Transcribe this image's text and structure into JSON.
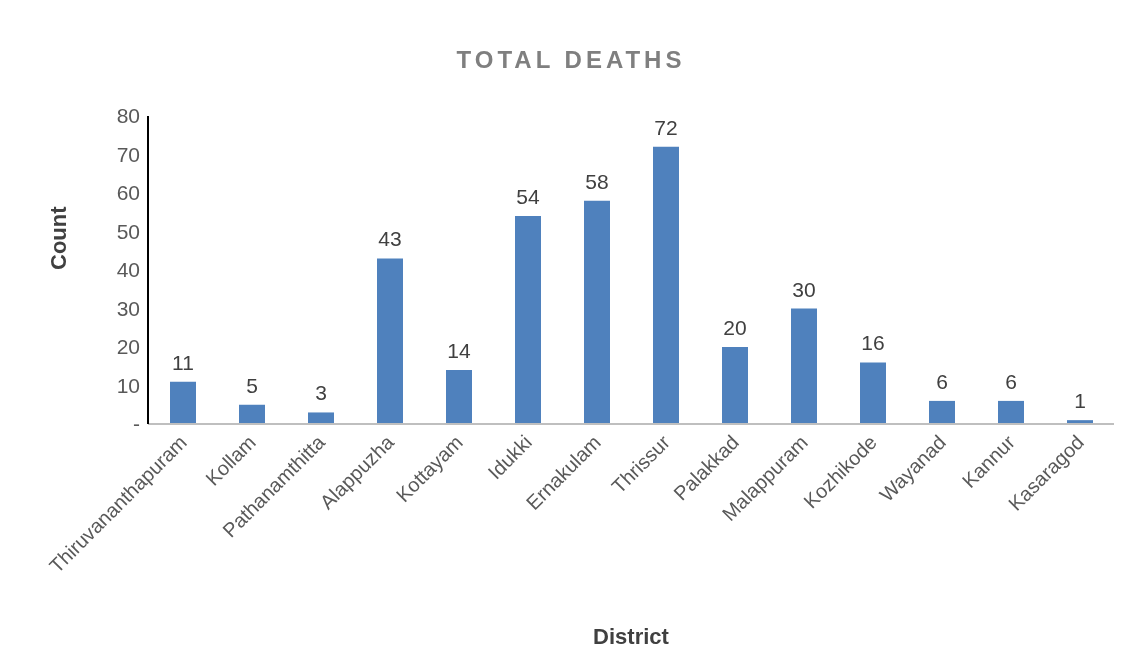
{
  "chart_data": {
    "type": "bar",
    "title": "TOTAL DEATHS",
    "xlabel": "District",
    "ylabel": "Count",
    "categories": [
      "Thiruvananthapuram",
      "Kollam",
      "Pathanamthitta",
      "Alappuzha",
      "Kottayam",
      "Idukki",
      "Ernakulam",
      "Thrissur",
      "Palakkad",
      "Malappuram",
      "Kozhikode",
      "Wayanad",
      "Kannur",
      "Kasaragod"
    ],
    "values": [
      11,
      5,
      3,
      43,
      14,
      54,
      58,
      72,
      20,
      30,
      16,
      6,
      6,
      1
    ],
    "color": "#4f81bd",
    "ylim": [
      0,
      80
    ],
    "yticks": [
      {
        "value": 0,
        "label": "-"
      },
      10,
      20,
      30,
      40,
      50,
      60,
      70,
      80
    ],
    "data_labels": true,
    "grid": false,
    "legend": false
  }
}
